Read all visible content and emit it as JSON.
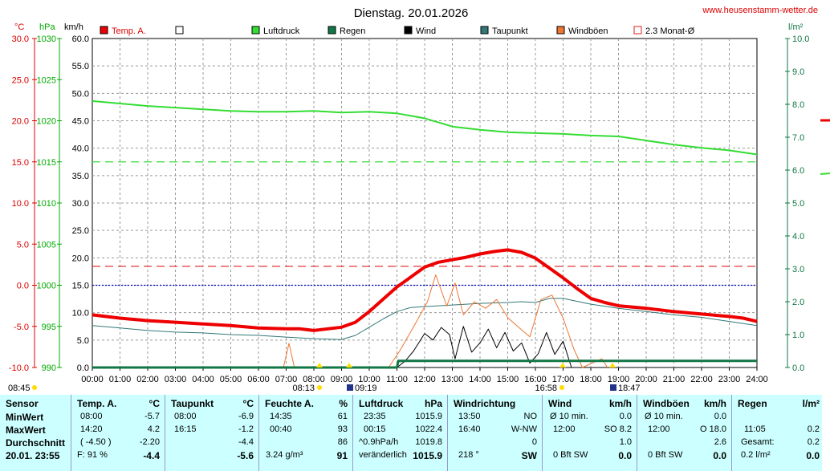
{
  "title": "Dienstag. 20.01.2026",
  "site": "www.heusenstamm-wetter.de",
  "axes": {
    "temp_unit": "°C",
    "press_unit": "hPa",
    "wind_unit": "km/h",
    "rain_unit": "l/m²",
    "temp_ticks": [
      "30.0",
      "25.0",
      "20.0",
      "15.0",
      "10.0",
      "5.0",
      "0.0",
      "-5.0",
      "-10.0"
    ],
    "press_ticks": [
      "1030",
      "1025",
      "1020",
      "1015",
      "1010",
      "1005",
      "1000",
      "995",
      "990"
    ],
    "wind_ticks": [
      "60.0",
      "55.0",
      "50.0",
      "45.0",
      "40.0",
      "35.0",
      "30.0",
      "25.0",
      "20.0",
      "15.0",
      "10.0",
      "5.0",
      "0.0"
    ],
    "rain_ticks": [
      "10.0",
      "9.0",
      "8.0",
      "7.0",
      "6.0",
      "5.0",
      "4.0",
      "3.0",
      "2.0",
      "1.0",
      "0.0"
    ],
    "time_ticks": [
      "00:00",
      "01:00",
      "02:00",
      "03:00",
      "04:00",
      "05:00",
      "06:00",
      "07:00",
      "08:00",
      "09:00",
      "10:00",
      "11:00",
      "12:00",
      "13:00",
      "14:00",
      "15:00",
      "16:00",
      "17:00",
      "18:00",
      "19:00",
      "20:00",
      "21:00",
      "22:00",
      "23:00",
      "24:00"
    ]
  },
  "legend": [
    {
      "label": "Temp. A.",
      "color": "#ee0000"
    },
    {
      "label": "",
      "color": "#ffffff"
    },
    {
      "label": "Luftdruck",
      "color": "#33dd33"
    },
    {
      "label": "Regen",
      "color": "#117744"
    },
    {
      "label": "Wind",
      "color": "#000000"
    },
    {
      "label": "Taupunkt",
      "color": "#337777"
    },
    {
      "label": "Windböen",
      "color": "#ee7733"
    },
    {
      "label": "2.3 Monat-Ø",
      "color": "#dd2222"
    }
  ],
  "sun": {
    "dawn": "08:45",
    "sunrise": "08:13",
    "rise_marker": "09:19",
    "sunset": "16:58",
    "set_marker": "18:47"
  },
  "chart_data": {
    "type": "line",
    "x_unit": "hours",
    "xlim": [
      0,
      24
    ],
    "series": [
      {
        "name": "Temp. A.",
        "axis": "°C",
        "ylim": [
          -10,
          30
        ],
        "color": "#ee0000",
        "x": [
          0,
          1,
          2,
          3,
          4,
          5,
          6,
          7,
          7.5,
          8,
          9,
          9.5,
          10,
          10.5,
          11,
          11.5,
          12,
          12.5,
          13,
          13.5,
          14,
          14.5,
          15,
          15.5,
          16,
          16.5,
          17,
          17.5,
          18,
          18.5,
          19,
          20,
          21,
          22,
          23,
          23.5,
          24
        ],
        "y": [
          -3.6,
          -4.0,
          -4.3,
          -4.5,
          -4.7,
          -4.9,
          -5.2,
          -5.3,
          -5.3,
          -5.5,
          -5.1,
          -4.5,
          -3.2,
          -1.7,
          -0.2,
          1.0,
          2.2,
          2.8,
          3.1,
          3.4,
          3.8,
          4.1,
          4.3,
          4.0,
          3.3,
          2.1,
          0.9,
          -0.4,
          -1.6,
          -2.1,
          -2.5,
          -2.8,
          -3.2,
          -3.5,
          -3.8,
          -4.0,
          -4.4
        ]
      },
      {
        "name": "Taupunkt",
        "axis": "°C",
        "ylim": [
          -10,
          30
        ],
        "color": "#337777",
        "x": [
          0,
          1,
          2,
          3,
          4,
          5,
          6,
          7,
          8,
          9,
          9.5,
          10,
          10.5,
          11,
          11.5,
          12,
          13,
          14,
          15,
          15.5,
          16,
          16.5,
          17,
          18,
          19,
          20,
          21,
          22,
          23,
          24
        ],
        "y": [
          -4.9,
          -5.2,
          -5.5,
          -5.7,
          -5.8,
          -6.0,
          -6.1,
          -6.3,
          -6.5,
          -6.6,
          -6.1,
          -5.1,
          -4.1,
          -3.2,
          -2.7,
          -2.6,
          -2.4,
          -2.2,
          -2.1,
          -2.0,
          -2.1,
          -1.6,
          -1.6,
          -2.3,
          -2.8,
          -3.2,
          -3.6,
          -3.9,
          -4.4,
          -4.9
        ]
      },
      {
        "name": "Luftdruck",
        "axis": "hPa",
        "ylim": [
          990,
          1030
        ],
        "color": "#33dd33",
        "x": [
          0,
          1,
          2,
          3,
          4,
          5,
          6,
          7,
          8,
          9,
          10,
          11,
          12,
          12.5,
          13,
          14,
          15,
          16,
          17,
          18,
          19,
          20,
          21,
          22,
          23,
          24
        ],
        "y": [
          1022.4,
          1022.1,
          1021.8,
          1021.6,
          1021.4,
          1021.2,
          1021.1,
          1021.1,
          1021.2,
          1021.0,
          1021.1,
          1020.9,
          1020.3,
          1019.8,
          1019.3,
          1018.9,
          1018.6,
          1018.5,
          1018.4,
          1018.2,
          1018.1,
          1017.6,
          1017.1,
          1016.7,
          1016.4,
          1015.9
        ]
      },
      {
        "name": "Wind",
        "axis": "km/h",
        "ylim": [
          0,
          60
        ],
        "color": "#000000",
        "x": [
          11.0,
          11.3,
          11.6,
          12.0,
          12.3,
          12.6,
          12.9,
          13.1,
          13.4,
          13.7,
          14.0,
          14.3,
          14.6,
          14.9,
          15.2,
          15.5,
          15.8,
          16.1,
          16.4,
          16.7,
          17.0,
          17.3
        ],
        "y": [
          0,
          1.2,
          3.0,
          6.2,
          5.0,
          7.3,
          6.0,
          1.6,
          7.5,
          2.8,
          4.5,
          7.0,
          3.6,
          6.4,
          3.0,
          4.5,
          0.8,
          2.5,
          6.4,
          2.4,
          4.8,
          0
        ]
      },
      {
        "name": "Windböen",
        "axis": "km/h",
        "ylim": [
          0,
          60
        ],
        "color": "#ee7733",
        "x": [
          6.9,
          7.1,
          7.3,
          10.7,
          11.1,
          11.6,
          12.1,
          12.4,
          12.8,
          13.1,
          13.4,
          13.8,
          14.2,
          14.6,
          15.0,
          15.4,
          15.8,
          16.2,
          16.6,
          17.0,
          17.4,
          17.7,
          18.4,
          18.6
        ],
        "y": [
          0,
          4.4,
          0,
          0,
          3.0,
          7.4,
          12.0,
          16.9,
          11.2,
          15.4,
          9.6,
          12.0,
          10.8,
          12.4,
          9.1,
          7.3,
          5.6,
          12.4,
          13.2,
          9.0,
          3.2,
          0,
          1.6,
          0
        ]
      },
      {
        "name": "Regen",
        "axis": "l/m²",
        "ylim": [
          0,
          10
        ],
        "color": "#117744",
        "x": [
          0,
          11.0,
          11.05,
          24
        ],
        "y": [
          0,
          0,
          0.2,
          0.2
        ]
      }
    ],
    "reference_lines": [
      {
        "label": "2.3 Monat-Ø",
        "axis": "°C",
        "value": 2.3,
        "color": "#dd2222",
        "style": "dashed"
      },
      {
        "axis": "hPa",
        "value": 1015,
        "color": "#33dd33",
        "style": "dashed"
      },
      {
        "axis": "°C",
        "value": 0,
        "color": "#0000cc",
        "style": "dotted"
      }
    ]
  },
  "table": {
    "rowlabels": {
      "h": "Sensor",
      "r1": "MinWert",
      "r2": "MaxWert",
      "r3": "Durchschnitt",
      "r4": "20.01. 23:55"
    },
    "temp": {
      "h": "Temp. A.",
      "u": "°C",
      "r1a": "08:00",
      "r1b": "-5.7",
      "r2a": "14:20",
      "r2b": "4.2",
      "r3a": "( -4.50 )",
      "r3b": "-2.20",
      "r4a": "F: 91 %",
      "r4b": "-4.4"
    },
    "dew": {
      "h": "Taupunkt",
      "u": "°C",
      "r1a": "08:00",
      "r1b": "-6.9",
      "r2a": "16:15",
      "r2b": "-1.2",
      "r3b": "-4.4",
      "r4b": "-5.6"
    },
    "hum": {
      "h": "Feuchte A.",
      "u": "%",
      "r1a": "14:35",
      "r1b": "61",
      "r2a": "00:40",
      "r2b": "93",
      "r3b": "86",
      "r4a": "3.24 g/m³",
      "r4b": "91"
    },
    "press": {
      "h": "Luftdruck",
      "u": "hPa",
      "r1a": "23:35",
      "r1b": "1015.9",
      "r2a": "00:15",
      "r2b": "1022.4",
      "r3a": "^0.9hPa/h",
      "r3b": "1019.8",
      "r4a": "veränderlich",
      "r4b": "1015.9"
    },
    "wdir": {
      "h": "Windrichtung",
      "r1a": "13:50",
      "r1b": "NO",
      "r2a": "16:40",
      "r2b": "W-NW",
      "r3b": "0",
      "r4a": "218 °",
      "r4b": "SW"
    },
    "wind": {
      "h": "Wind",
      "u": "km/h",
      "r1a": "Ø 10 min.",
      "r1b": "0.0",
      "r2a": "12:00",
      "r2b": "SO 8.2",
      "r3b": "1.0",
      "r4a": "0 Bft SW",
      "r4b": "0.0"
    },
    "gust": {
      "h": "Windböen",
      "u": "km/h",
      "r1a": "Ø 10 min.",
      "r1b": "0.0",
      "r2a": "12:00",
      "r2b": "O 18.0",
      "r3b": "2.6",
      "r4a": "0 Bft SW",
      "r4b": "0.0"
    },
    "rain": {
      "h": "Regen",
      "u": "l/m²",
      "r2a": "11:05",
      "r2b": "0.2",
      "r3a": "Gesamt:",
      "r3b": "0.2",
      "r4a": "0.2 l/m²",
      "r4b": "0.0"
    }
  }
}
